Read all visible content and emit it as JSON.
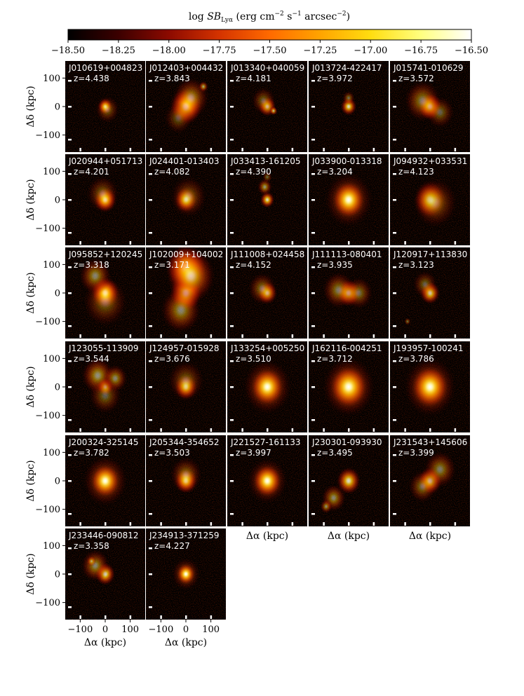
{
  "chart_data": {
    "type": "heatmap",
    "colorbar": {
      "label_prefix": "log ",
      "label_sb": "SB",
      "label_sub": "Lyα",
      "label_units": " (erg cm",
      "label_exp1": "−2",
      "label_mid": " s",
      "label_exp2": "−1",
      "label_end": " arcsec",
      "label_exp3": "−2",
      "label_close": ")",
      "range": [
        -18.5,
        -16.5
      ],
      "ticks": [
        "−18.50",
        "−18.25",
        "−18.00",
        "−17.75",
        "−17.50",
        "−17.25",
        "−17.00",
        "−16.75",
        "−16.50"
      ],
      "colors": [
        "#000000",
        "#3b0000",
        "#8c0a00",
        "#d43300",
        "#ff6a00",
        "#ffa400",
        "#ffdd10",
        "#ffff80",
        "#ffffff"
      ]
    },
    "xlabel": "Δα (kpc)",
    "ylabel": "Δδ (kpc)",
    "xticks": [
      "−100",
      "0",
      "100"
    ],
    "yticks": [
      "100",
      "0",
      "−100"
    ],
    "xlim": [
      -160,
      160
    ],
    "ylim": [
      -160,
      160
    ],
    "panels": [
      {
        "name": "J010619+004823",
        "z": "z=4.438",
        "blobs": [
          [
            0,
            0,
            18,
            0.9
          ],
          [
            8,
            -10,
            30,
            0.35
          ]
        ]
      },
      {
        "name": "J012403+004432",
        "z": "z=3.843",
        "blobs": [
          [
            0,
            0,
            40,
            1.0
          ],
          [
            20,
            30,
            45,
            0.5
          ],
          [
            70,
            70,
            12,
            0.6
          ],
          [
            -30,
            -40,
            35,
            0.3
          ]
        ]
      },
      {
        "name": "J013340+040059",
        "z": "z=4.181",
        "blobs": [
          [
            0,
            0,
            22,
            0.8
          ],
          [
            25,
            -15,
            10,
            0.7
          ],
          [
            -15,
            20,
            30,
            0.35
          ]
        ]
      },
      {
        "name": "J013724-422417",
        "z": "z=3.972",
        "blobs": [
          [
            0,
            0,
            20,
            0.85
          ],
          [
            0,
            30,
            15,
            0.4
          ]
        ]
      },
      {
        "name": "J015741-010629",
        "z": "z=3.572",
        "blobs": [
          [
            0,
            0,
            30,
            0.9
          ],
          [
            -30,
            20,
            45,
            0.45
          ],
          [
            40,
            -20,
            35,
            0.35
          ]
        ]
      },
      {
        "name": "J020944+051713",
        "z": "z=4.201",
        "blobs": [
          [
            0,
            0,
            28,
            0.95
          ],
          [
            -10,
            20,
            40,
            0.35
          ]
        ]
      },
      {
        "name": "J024401-013403",
        "z": "z=4.082",
        "blobs": [
          [
            0,
            0,
            28,
            0.85
          ],
          [
            10,
            10,
            45,
            0.35
          ]
        ]
      },
      {
        "name": "J033413-161205",
        "z": "z=4.390",
        "blobs": [
          [
            0,
            0,
            18,
            0.85
          ],
          [
            -10,
            45,
            18,
            0.55
          ],
          [
            0,
            80,
            12,
            0.35
          ]
        ]
      },
      {
        "name": "J033900-013318",
        "z": "z=3.204",
        "blobs": [
          [
            0,
            0,
            40,
            1.0
          ],
          [
            0,
            0,
            60,
            0.4
          ]
        ]
      },
      {
        "name": "J094932+033531",
        "z": "z=4.123",
        "blobs": [
          [
            0,
            0,
            40,
            0.8
          ],
          [
            20,
            -10,
            55,
            0.35
          ]
        ]
      },
      {
        "name": "J095852+120245",
        "z": "z=3.318",
        "blobs": [
          [
            0,
            0,
            35,
            1.0
          ],
          [
            -40,
            60,
            40,
            0.5
          ],
          [
            0,
            -30,
            55,
            0.35
          ]
        ]
      },
      {
        "name": "J102009+104002",
        "z": "z=3.171",
        "blobs": [
          [
            0,
            0,
            40,
            1.0
          ],
          [
            0,
            90,
            50,
            0.95
          ],
          [
            20,
            60,
            60,
            0.7
          ],
          [
            -20,
            -60,
            50,
            0.5
          ]
        ]
      },
      {
        "name": "J111008+024458",
        "z": "z=4.152",
        "blobs": [
          [
            0,
            0,
            25,
            0.8
          ],
          [
            -20,
            15,
            35,
            0.4
          ]
        ]
      },
      {
        "name": "J111113-080401",
        "z": "z=3.935",
        "blobs": [
          [
            0,
            0,
            30,
            0.85
          ],
          [
            -40,
            10,
            40,
            0.45
          ],
          [
            40,
            0,
            35,
            0.4
          ]
        ]
      },
      {
        "name": "J120917+113830",
        "z": "z=3.123",
        "blobs": [
          [
            0,
            0,
            25,
            0.85
          ],
          [
            -20,
            30,
            30,
            0.35
          ],
          [
            -90,
            -100,
            8,
            0.4
          ]
        ]
      },
      {
        "name": "J123055-113909",
        "z": "z=3.544",
        "blobs": [
          [
            0,
            0,
            20,
            0.75
          ],
          [
            -30,
            40,
            40,
            0.55
          ],
          [
            40,
            30,
            30,
            0.5
          ],
          [
            0,
            -30,
            40,
            0.35
          ]
        ]
      },
      {
        "name": "J124957-015928",
        "z": "z=3.676",
        "blobs": [
          [
            0,
            0,
            28,
            0.85
          ],
          [
            0,
            20,
            45,
            0.35
          ]
        ]
      },
      {
        "name": "J133254+005250",
        "z": "z=3.510",
        "blobs": [
          [
            0,
            0,
            40,
            1.0
          ],
          [
            0,
            0,
            60,
            0.45
          ]
        ]
      },
      {
        "name": "J162116-004251",
        "z": "z=3.712",
        "blobs": [
          [
            0,
            0,
            45,
            1.0
          ],
          [
            0,
            0,
            65,
            0.5
          ]
        ]
      },
      {
        "name": "J193957-100241",
        "z": "z=3.786",
        "blobs": [
          [
            0,
            0,
            45,
            1.0
          ],
          [
            0,
            0,
            65,
            0.45
          ]
        ]
      },
      {
        "name": "J200324-325145",
        "z": "z=3.782",
        "blobs": [
          [
            0,
            0,
            35,
            1.0
          ],
          [
            0,
            0,
            55,
            0.45
          ]
        ]
      },
      {
        "name": "J205344-354652",
        "z": "z=3.503",
        "blobs": [
          [
            0,
            0,
            28,
            0.9
          ],
          [
            0,
            20,
            40,
            0.4
          ]
        ]
      },
      {
        "name": "J221527-161133",
        "z": "z=3.997",
        "blobs": [
          [
            0,
            0,
            35,
            1.0
          ],
          [
            0,
            0,
            50,
            0.4
          ]
        ]
      },
      {
        "name": "J230301-093930",
        "z": "z=3.495",
        "blobs": [
          [
            0,
            0,
            30,
            0.85
          ],
          [
            -60,
            -60,
            30,
            0.5
          ],
          [
            -90,
            -90,
            15,
            0.5
          ]
        ]
      },
      {
        "name": "J231543+145606",
        "z": "z=3.399",
        "blobs": [
          [
            0,
            0,
            30,
            0.85
          ],
          [
            40,
            40,
            40,
            0.45
          ],
          [
            -30,
            -20,
            35,
            0.4
          ]
        ]
      },
      {
        "name": "J233446-090812",
        "z": "z=3.358",
        "blobs": [
          [
            0,
            0,
            25,
            0.85
          ],
          [
            -40,
            30,
            35,
            0.5
          ],
          [
            -55,
            45,
            12,
            0.5
          ]
        ]
      },
      {
        "name": "J234913-371259",
        "z": "z=4.227",
        "blobs": [
          [
            0,
            0,
            22,
            1.0
          ],
          [
            0,
            0,
            35,
            0.4
          ]
        ]
      }
    ]
  }
}
